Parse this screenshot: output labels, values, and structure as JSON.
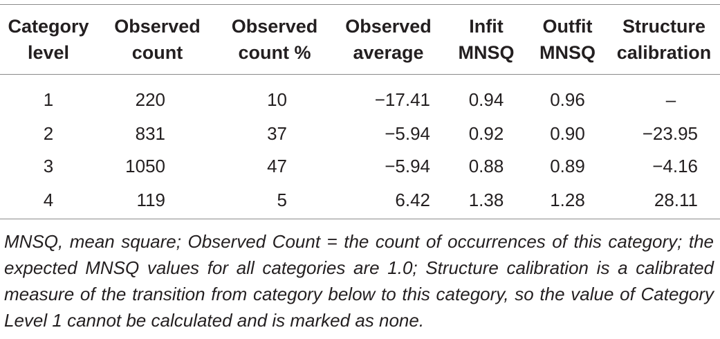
{
  "table": {
    "headers": [
      [
        "Category",
        "level"
      ],
      [
        "Observed",
        "count"
      ],
      [
        "Observed",
        "count %"
      ],
      [
        "Observed",
        "average"
      ],
      [
        "Infit",
        "MNSQ"
      ],
      [
        "Outfit",
        "MNSQ"
      ],
      [
        "Structure",
        "calibration"
      ]
    ],
    "rows": [
      [
        "1",
        "220",
        "10",
        "−17.41",
        "0.94",
        "0.96",
        "–"
      ],
      [
        "2",
        "831",
        "37",
        "−5.94",
        "0.92",
        "0.90",
        "−23.95"
      ],
      [
        "3",
        "1050",
        "47",
        "−5.94",
        "0.88",
        "0.89",
        "−4.16"
      ],
      [
        "4",
        "119",
        "5",
        "6.42",
        "1.38",
        "1.28",
        "28.11"
      ]
    ]
  },
  "footnote": "MNSQ, mean square; Observed Count = the count of occurrences of this category; the expected MNSQ values for all categories are 1.0; Structure calibration is a calibrated measure of the transition from category below to this category, so the value of Category Level 1 cannot be calculated and is marked as none."
}
